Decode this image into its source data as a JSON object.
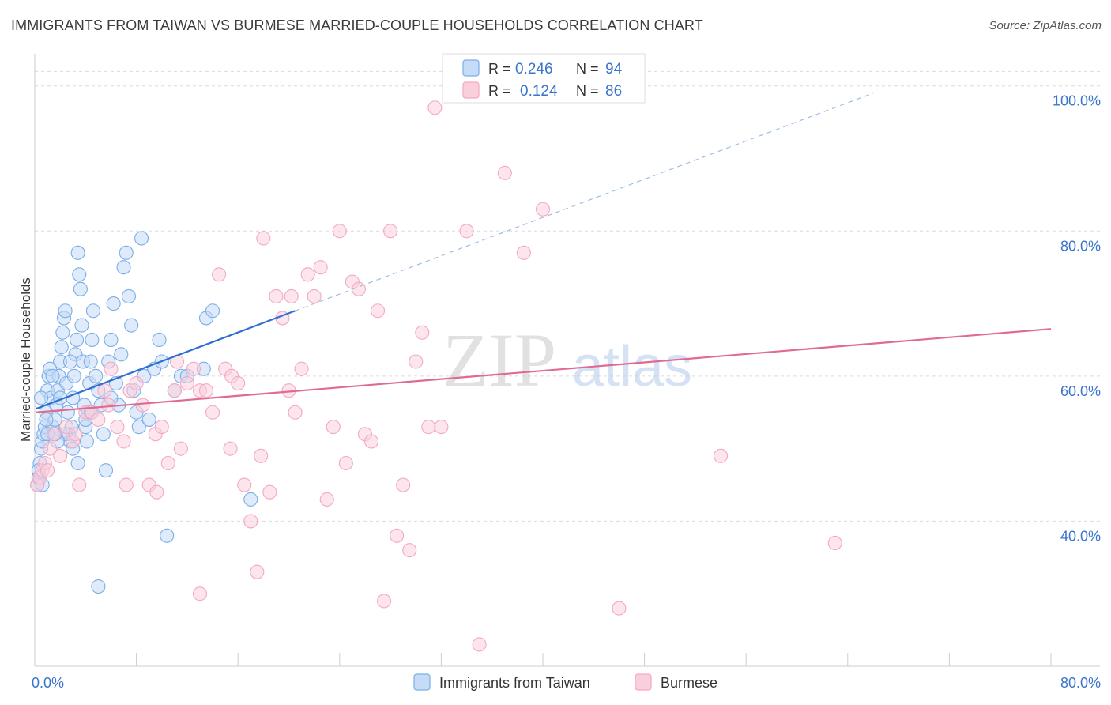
{
  "header": {
    "title": "IMMIGRANTS FROM TAIWAN VS BURMESE MARRIED-COUPLE HOUSEHOLDS CORRELATION CHART",
    "source": "Source: ZipAtlas.com"
  },
  "watermark": {
    "part1": "ZIP",
    "part2": "atlas"
  },
  "legend_box": {
    "rows": [
      {
        "r_label": "R =",
        "r_value": "0.246",
        "n_label": "N =",
        "n_value": "94"
      },
      {
        "r_label": "R =",
        "r_value": "0.124",
        "n_label": "N =",
        "n_value": "86"
      }
    ]
  },
  "chart_data": {
    "type": "scatter",
    "ylabel": "Married-couple Households",
    "xlim": [
      0,
      80
    ],
    "ylim": [
      20,
      104
    ],
    "x_tick_labels": [
      {
        "value": 0,
        "label": "0.0%"
      },
      {
        "value": 80,
        "label": "80.0%"
      }
    ],
    "y_tick_labels": [
      {
        "value": 40,
        "label": "40.0%"
      },
      {
        "value": 60,
        "label": "60.0%"
      },
      {
        "value": 80,
        "label": "80.0%"
      },
      {
        "value": 100,
        "label": "100.0%"
      }
    ],
    "x_minor_ticks": [
      0,
      8,
      16,
      24,
      32,
      40,
      48,
      56,
      64,
      72,
      80
    ],
    "grid": true,
    "legend_position": "bottom",
    "series": [
      {
        "name": "Immigrants from Taiwan",
        "color": "#7aaee8",
        "line_color": "#2f6fd0",
        "regression": {
          "x0": 0.1,
          "y0": 55.5,
          "x1": 20.5,
          "y1": 69,
          "dash_x1": 66,
          "dash_y1": 99
        },
        "points": [
          [
            0.2,
            45
          ],
          [
            0.3,
            46
          ],
          [
            0.4,
            48
          ],
          [
            0.5,
            50
          ],
          [
            0.6,
            51
          ],
          [
            0.7,
            52
          ],
          [
            0.8,
            53
          ],
          [
            0.9,
            55
          ],
          [
            1,
            58
          ],
          [
            1.1,
            60
          ],
          [
            1.2,
            61
          ],
          [
            1.3,
            57
          ],
          [
            1.4,
            53
          ],
          [
            1.5,
            52
          ],
          [
            1.6,
            54
          ],
          [
            1.7,
            56
          ],
          [
            1.8,
            58
          ],
          [
            1.9,
            60
          ],
          [
            2,
            62
          ],
          [
            2.1,
            64
          ],
          [
            2.2,
            66
          ],
          [
            2.3,
            68
          ],
          [
            2.4,
            69
          ],
          [
            2.5,
            59
          ],
          [
            2.6,
            55
          ],
          [
            2.7,
            52
          ],
          [
            2.8,
            51
          ],
          [
            2.9,
            53
          ],
          [
            3,
            57
          ],
          [
            3.1,
            60
          ],
          [
            3.2,
            63
          ],
          [
            3.3,
            65
          ],
          [
            3.4,
            77
          ],
          [
            3.5,
            74
          ],
          [
            3.6,
            72
          ],
          [
            3.7,
            67
          ],
          [
            3.8,
            62
          ],
          [
            3.9,
            56
          ],
          [
            4,
            53
          ],
          [
            4.1,
            51
          ],
          [
            4.2,
            55
          ],
          [
            4.3,
            59
          ],
          [
            4.4,
            62
          ],
          [
            4.5,
            65
          ],
          [
            4.6,
            69
          ],
          [
            4.8,
            60
          ],
          [
            5,
            58
          ],
          [
            5.2,
            56
          ],
          [
            5.4,
            52
          ],
          [
            5.6,
            47
          ],
          [
            5.8,
            62
          ],
          [
            6,
            65
          ],
          [
            6.2,
            70
          ],
          [
            6.4,
            59
          ],
          [
            6.6,
            56
          ],
          [
            6.8,
            63
          ],
          [
            7,
            75
          ],
          [
            7.2,
            77
          ],
          [
            7.4,
            71
          ],
          [
            7.6,
            67
          ],
          [
            7.8,
            58
          ],
          [
            8,
            55
          ],
          [
            8.2,
            53
          ],
          [
            8.4,
            79
          ],
          [
            8.6,
            60
          ],
          [
            9,
            54
          ],
          [
            9.4,
            61
          ],
          [
            9.8,
            65
          ],
          [
            10,
            62
          ],
          [
            10.4,
            38
          ],
          [
            11,
            58
          ],
          [
            11.5,
            60
          ],
          [
            12,
            60
          ],
          [
            1.0,
            52
          ],
          [
            2.0,
            57
          ],
          [
            3.0,
            50
          ],
          [
            4.0,
            54
          ],
          [
            5.0,
            31
          ],
          [
            6.0,
            57
          ],
          [
            13.5,
            68
          ],
          [
            14,
            69
          ],
          [
            17,
            43
          ],
          [
            0.3,
            47
          ],
          [
            0.6,
            45
          ],
          [
            1.4,
            60
          ],
          [
            2.4,
            52
          ],
          [
            3.4,
            48
          ],
          [
            4.4,
            55
          ],
          [
            1.8,
            51
          ],
          [
            0.9,
            54
          ],
          [
            0.5,
            57
          ],
          [
            1.6,
            52
          ],
          [
            2.8,
            62
          ],
          [
            13.3,
            61
          ]
        ]
      },
      {
        "name": "Burmese",
        "color": "#f4a8c2",
        "line_color": "#e06a94",
        "regression": {
          "x0": 0.1,
          "y0": 55,
          "x1": 80,
          "y1": 66.5
        },
        "points": [
          [
            0.2,
            45
          ],
          [
            0.4,
            46
          ],
          [
            0.6,
            47
          ],
          [
            0.8,
            48
          ],
          [
            1,
            47
          ],
          [
            1.2,
            50
          ],
          [
            1.5,
            52
          ],
          [
            2,
            49
          ],
          [
            2.5,
            53
          ],
          [
            3,
            51
          ],
          [
            3.5,
            45
          ],
          [
            4,
            55
          ],
          [
            4.5,
            55
          ],
          [
            5,
            54
          ],
          [
            5.5,
            58
          ],
          [
            6,
            61
          ],
          [
            6.5,
            53
          ],
          [
            7,
            51
          ],
          [
            7.5,
            58
          ],
          [
            8,
            59
          ],
          [
            8.5,
            56
          ],
          [
            9,
            45
          ],
          [
            9.5,
            52
          ],
          [
            10,
            53
          ],
          [
            10.5,
            48
          ],
          [
            11,
            58
          ],
          [
            11.5,
            50
          ],
          [
            12,
            59
          ],
          [
            12.5,
            61
          ],
          [
            13,
            58
          ],
          [
            13.5,
            58
          ],
          [
            14,
            55
          ],
          [
            14.5,
            74
          ],
          [
            15,
            61
          ],
          [
            15.5,
            60
          ],
          [
            16,
            59
          ],
          [
            16.5,
            45
          ],
          [
            17,
            40
          ],
          [
            17.5,
            33
          ],
          [
            18,
            79
          ],
          [
            18.5,
            44
          ],
          [
            19,
            71
          ],
          [
            19.5,
            68
          ],
          [
            20,
            58
          ],
          [
            20.5,
            55
          ],
          [
            21,
            61
          ],
          [
            21.5,
            74
          ],
          [
            22,
            71
          ],
          [
            22.5,
            75
          ],
          [
            23,
            43
          ],
          [
            23.5,
            53
          ],
          [
            24,
            80
          ],
          [
            24.5,
            48
          ],
          [
            25,
            73
          ],
          [
            25.5,
            72
          ],
          [
            26,
            52
          ],
          [
            26.5,
            51
          ],
          [
            27,
            69
          ],
          [
            27.5,
            29
          ],
          [
            28,
            80
          ],
          [
            28.5,
            38
          ],
          [
            29,
            45
          ],
          [
            29.5,
            36
          ],
          [
            30,
            62
          ],
          [
            30.5,
            66
          ],
          [
            31,
            53
          ],
          [
            31.5,
            97
          ],
          [
            32,
            53
          ],
          [
            34,
            80
          ],
          [
            35,
            23
          ],
          [
            35,
            100
          ],
          [
            37,
            88
          ],
          [
            38.5,
            77
          ],
          [
            40,
            83
          ],
          [
            46,
            28
          ],
          [
            54,
            49
          ],
          [
            63,
            37
          ],
          [
            7.2,
            45
          ],
          [
            9.6,
            44
          ],
          [
            11.2,
            62
          ],
          [
            13,
            30
          ],
          [
            15.4,
            50
          ],
          [
            17.8,
            49
          ],
          [
            20.2,
            71
          ],
          [
            3.2,
            52
          ],
          [
            5.8,
            56
          ]
        ]
      }
    ]
  }
}
